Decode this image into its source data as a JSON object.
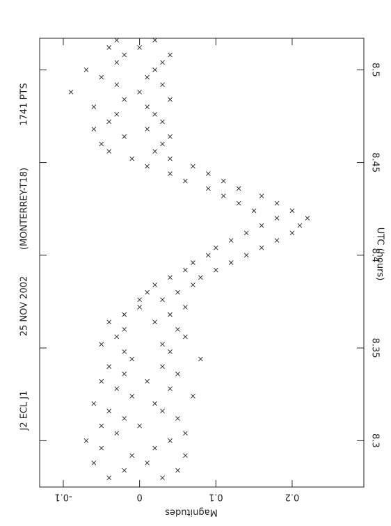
{
  "chart_data": {
    "type": "scatter",
    "title": "J2 ECL J1",
    "date": "25 NOV 2002",
    "observatory": "(MONTERREY-T18)",
    "points_label": "1741 PTS",
    "x_label": "UTC (hours)",
    "y_label": "Magnitudes",
    "xlim": [
      8.275,
      8.517
    ],
    "xticks": [
      8.3,
      8.35,
      8.4,
      8.45,
      8.5
    ],
    "ylim": [
      -0.131,
      0.294
    ],
    "yticks": [
      -0.1,
      0,
      0.1,
      0.2
    ],
    "color": "#222222",
    "x": [
      8.28,
      8.28,
      8.284,
      8.284,
      8.288,
      8.288,
      8.292,
      8.292,
      8.296,
      8.296,
      8.3,
      8.3,
      8.304,
      8.304,
      8.308,
      8.308,
      8.312,
      8.312,
      8.316,
      8.316,
      8.32,
      8.32,
      8.324,
      8.324,
      8.328,
      8.328,
      8.332,
      8.332,
      8.336,
      8.336,
      8.34,
      8.34,
      8.344,
      8.344,
      8.348,
      8.348,
      8.352,
      8.352,
      8.356,
      8.356,
      8.36,
      8.36,
      8.364,
      8.364,
      8.368,
      8.368,
      8.372,
      8.372,
      8.376,
      8.376,
      8.38,
      8.38,
      8.384,
      8.384,
      8.388,
      8.388,
      8.392,
      8.392,
      8.396,
      8.396,
      8.4,
      8.4,
      8.404,
      8.404,
      8.408,
      8.408,
      8.412,
      8.412,
      8.416,
      8.416,
      8.42,
      8.42,
      8.424,
      8.424,
      8.428,
      8.428,
      8.432,
      8.432,
      8.436,
      8.436,
      8.44,
      8.44,
      8.444,
      8.444,
      8.448,
      8.448,
      8.452,
      8.452,
      8.456,
      8.456,
      8.46,
      8.46,
      8.464,
      8.464,
      8.468,
      8.468,
      8.472,
      8.472,
      8.476,
      8.476,
      8.48,
      8.48,
      8.484,
      8.484,
      8.488,
      8.488,
      8.492,
      8.492,
      8.496,
      8.496,
      8.5,
      8.5,
      8.504,
      8.504,
      8.508,
      8.508,
      8.512,
      8.512,
      8.516,
      8.516
    ],
    "values": [
      0.03,
      -0.04,
      -0.02,
      0.05,
      0.01,
      -0.06,
      0.06,
      -0.01,
      -0.05,
      0.02,
      0.04,
      -0.07,
      -0.03,
      0.06,
      0.0,
      -0.05,
      0.05,
      -0.02,
      -0.04,
      0.03,
      0.02,
      -0.06,
      0.07,
      -0.01,
      -0.03,
      0.04,
      0.01,
      -0.05,
      0.05,
      -0.02,
      -0.04,
      0.03,
      0.08,
      -0.01,
      -0.02,
      0.04,
      0.03,
      -0.05,
      0.06,
      -0.03,
      -0.02,
      0.05,
      0.02,
      -0.04,
      0.04,
      -0.02,
      0.0,
      0.06,
      0.03,
      0.0,
      0.05,
      0.01,
      0.07,
      0.02,
      0.08,
      0.04,
      0.1,
      0.06,
      0.12,
      0.07,
      0.14,
      0.09,
      0.16,
      0.1,
      0.18,
      0.12,
      0.2,
      0.14,
      0.21,
      0.16,
      0.22,
      0.18,
      0.2,
      0.15,
      0.18,
      0.13,
      0.16,
      0.11,
      0.13,
      0.09,
      0.11,
      0.06,
      0.09,
      0.04,
      0.07,
      0.01,
      0.04,
      -0.01,
      0.02,
      -0.04,
      0.03,
      -0.05,
      -0.02,
      0.04,
      0.01,
      -0.06,
      -0.04,
      0.03,
      0.02,
      -0.03,
      -0.06,
      0.01,
      0.04,
      -0.02,
      -0.09,
      0.0,
      -0.03,
      0.03,
      0.01,
      -0.05,
      -0.07,
      0.02,
      0.03,
      -0.03,
      -0.02,
      0.04,
      0.0,
      -0.04,
      -0.03,
      0.02
    ]
  }
}
